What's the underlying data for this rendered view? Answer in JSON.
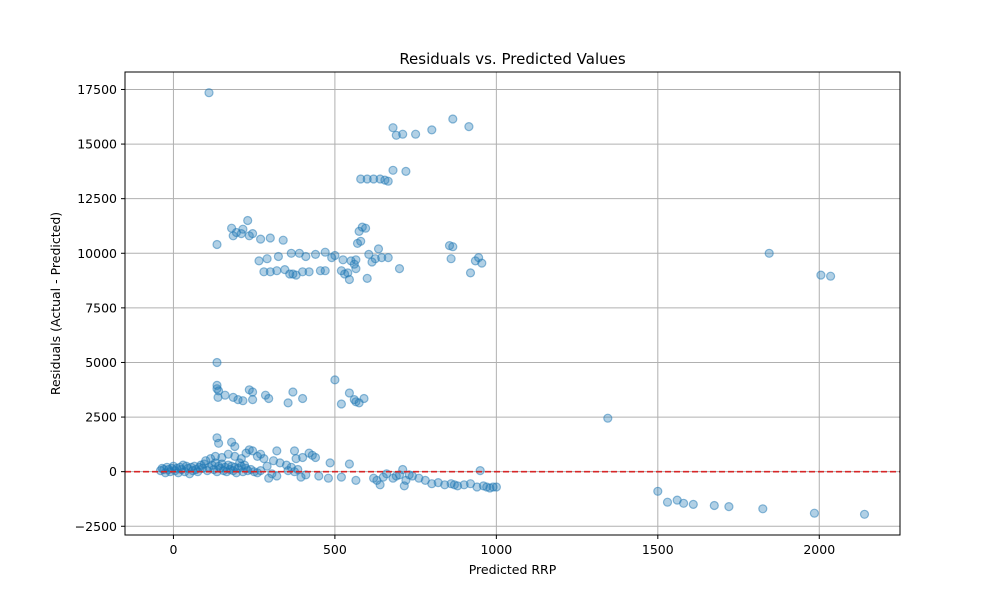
{
  "chart_data": {
    "type": "scatter",
    "title": "Residuals vs. Predicted Values",
    "xlabel": "Predicted RRP",
    "ylabel": "Residuals (Actual - Predicted)",
    "xlim": [
      -150,
      2250
    ],
    "ylim": [
      -2900,
      18300
    ],
    "xticks": [
      0,
      500,
      1000,
      1500,
      2000
    ],
    "yticks": [
      -2500,
      0,
      2500,
      5000,
      7500,
      10000,
      12500,
      15000,
      17500
    ],
    "grid": true,
    "point_color": "#1f77b4",
    "point_alpha": 0.35,
    "reference_line": {
      "y": 0,
      "color": "#d62728",
      "style": "dashed"
    },
    "series": [
      {
        "points": [
          [
            110,
            17350
          ],
          [
            680,
            15750
          ],
          [
            690,
            15400
          ],
          [
            710,
            15450
          ],
          [
            750,
            15450
          ],
          [
            800,
            15650
          ],
          [
            865,
            16150
          ],
          [
            915,
            15800
          ],
          [
            580,
            13400
          ],
          [
            600,
            13400
          ],
          [
            620,
            13400
          ],
          [
            640,
            13400
          ],
          [
            655,
            13350
          ],
          [
            665,
            13300
          ],
          [
            680,
            13800
          ],
          [
            720,
            13750
          ],
          [
            135,
            10400
          ],
          [
            180,
            11150
          ],
          [
            185,
            10800
          ],
          [
            195,
            10950
          ],
          [
            210,
            10900
          ],
          [
            215,
            11100
          ],
          [
            230,
            11500
          ],
          [
            235,
            10800
          ],
          [
            245,
            10900
          ],
          [
            270,
            10650
          ],
          [
            300,
            10700
          ],
          [
            340,
            10600
          ],
          [
            265,
            9650
          ],
          [
            280,
            9150
          ],
          [
            300,
            9150
          ],
          [
            320,
            9200
          ],
          [
            345,
            9250
          ],
          [
            360,
            9050
          ],
          [
            370,
            9050
          ],
          [
            380,
            9000
          ],
          [
            400,
            9150
          ],
          [
            420,
            9150
          ],
          [
            455,
            9200
          ],
          [
            470,
            9200
          ],
          [
            290,
            9750
          ],
          [
            325,
            9850
          ],
          [
            365,
            10000
          ],
          [
            390,
            10000
          ],
          [
            410,
            9850
          ],
          [
            440,
            9950
          ],
          [
            470,
            10050
          ],
          [
            490,
            9800
          ],
          [
            500,
            9900
          ],
          [
            520,
            9200
          ],
          [
            525,
            9700
          ],
          [
            530,
            9050
          ],
          [
            540,
            9100
          ],
          [
            545,
            8800
          ],
          [
            550,
            9650
          ],
          [
            560,
            9500
          ],
          [
            565,
            9300
          ],
          [
            565,
            9700
          ],
          [
            570,
            10450
          ],
          [
            575,
            11000
          ],
          [
            580,
            10550
          ],
          [
            585,
            11200
          ],
          [
            595,
            11150
          ],
          [
            600,
            8850
          ],
          [
            605,
            9950
          ],
          [
            615,
            9600
          ],
          [
            625,
            9750
          ],
          [
            635,
            10200
          ],
          [
            645,
            9800
          ],
          [
            665,
            9800
          ],
          [
            700,
            9300
          ],
          [
            855,
            10350
          ],
          [
            860,
            9750
          ],
          [
            865,
            10300
          ],
          [
            920,
            9100
          ],
          [
            935,
            9650
          ],
          [
            945,
            9800
          ],
          [
            955,
            9550
          ],
          [
            1845,
            10000
          ],
          [
            2005,
            9000
          ],
          [
            2035,
            8950
          ],
          [
            135,
            5000
          ],
          [
            135,
            3800
          ],
          [
            135,
            3950
          ],
          [
            138,
            3400
          ],
          [
            140,
            3700
          ],
          [
            160,
            3500
          ],
          [
            185,
            3400
          ],
          [
            200,
            3300
          ],
          [
            215,
            3250
          ],
          [
            235,
            3750
          ],
          [
            245,
            3300
          ],
          [
            245,
            3650
          ],
          [
            285,
            3500
          ],
          [
            295,
            3350
          ],
          [
            355,
            3150
          ],
          [
            370,
            3650
          ],
          [
            400,
            3350
          ],
          [
            500,
            4200
          ],
          [
            520,
            3100
          ],
          [
            545,
            3600
          ],
          [
            560,
            3300
          ],
          [
            565,
            3200
          ],
          [
            575,
            3150
          ],
          [
            590,
            3350
          ],
          [
            1345,
            2450
          ],
          [
            135,
            1550
          ],
          [
            140,
            1300
          ],
          [
            180,
            1350
          ],
          [
            190,
            1150
          ],
          [
            235,
            1000
          ],
          [
            245,
            950
          ],
          [
            270,
            800
          ],
          [
            320,
            950
          ],
          [
            375,
            950
          ],
          [
            420,
            850
          ],
          [
            430,
            750
          ],
          [
            130,
            700
          ],
          [
            150,
            650
          ],
          [
            170,
            800
          ],
          [
            190,
            700
          ],
          [
            210,
            600
          ],
          [
            225,
            850
          ],
          [
            260,
            700
          ],
          [
            280,
            600
          ],
          [
            310,
            500
          ],
          [
            330,
            400
          ],
          [
            350,
            300
          ],
          [
            380,
            600
          ],
          [
            400,
            650
          ],
          [
            440,
            650
          ],
          [
            -40,
            50
          ],
          [
            -35,
            150
          ],
          [
            -30,
            100
          ],
          [
            -25,
            -50
          ],
          [
            -20,
            200
          ],
          [
            -15,
            100
          ],
          [
            -10,
            0
          ],
          [
            -5,
            150
          ],
          [
            0,
            250
          ],
          [
            5,
            50
          ],
          [
            10,
            150
          ],
          [
            15,
            -50
          ],
          [
            20,
            200
          ],
          [
            25,
            100
          ],
          [
            30,
            300
          ],
          [
            35,
            0
          ],
          [
            40,
            250
          ],
          [
            45,
            150
          ],
          [
            50,
            -100
          ],
          [
            55,
            200
          ],
          [
            60,
            50
          ],
          [
            65,
            250
          ],
          [
            70,
            100
          ],
          [
            75,
            0
          ],
          [
            80,
            200
          ],
          [
            85,
            300
          ],
          [
            90,
            150
          ],
          [
            95,
            350
          ],
          [
            100,
            500
          ],
          [
            105,
            50
          ],
          [
            110,
            200
          ],
          [
            115,
            600
          ],
          [
            120,
            300
          ],
          [
            125,
            100
          ],
          [
            130,
            400
          ],
          [
            135,
            0
          ],
          [
            140,
            250
          ],
          [
            145,
            150
          ],
          [
            150,
            350
          ],
          [
            155,
            50
          ],
          [
            160,
            200
          ],
          [
            165,
            0
          ],
          [
            170,
            300
          ],
          [
            175,
            100
          ],
          [
            180,
            250
          ],
          [
            185,
            50
          ],
          [
            190,
            200
          ],
          [
            195,
            -50
          ],
          [
            200,
            150
          ],
          [
            205,
            400
          ],
          [
            210,
            250
          ],
          [
            215,
            0
          ],
          [
            220,
            300
          ],
          [
            225,
            150
          ],
          [
            230,
            50
          ],
          [
            240,
            100
          ],
          [
            250,
            0
          ],
          [
            260,
            -50
          ],
          [
            270,
            50
          ],
          [
            290,
            250
          ],
          [
            295,
            -300
          ],
          [
            305,
            -100
          ],
          [
            320,
            -200
          ],
          [
            355,
            50
          ],
          [
            365,
            200
          ],
          [
            375,
            0
          ],
          [
            385,
            100
          ],
          [
            395,
            -250
          ],
          [
            410,
            -150
          ],
          [
            450,
            -200
          ],
          [
            480,
            -300
          ],
          [
            485,
            400
          ],
          [
            520,
            -250
          ],
          [
            545,
            350
          ],
          [
            565,
            -400
          ],
          [
            620,
            -300
          ],
          [
            630,
            -400
          ],
          [
            640,
            -600
          ],
          [
            650,
            -250
          ],
          [
            660,
            -100
          ],
          [
            680,
            -300
          ],
          [
            690,
            -200
          ],
          [
            700,
            -150
          ],
          [
            710,
            100
          ],
          [
            715,
            -650
          ],
          [
            720,
            -400
          ],
          [
            730,
            -150
          ],
          [
            740,
            -200
          ],
          [
            760,
            -300
          ],
          [
            780,
            -400
          ],
          [
            800,
            -550
          ],
          [
            820,
            -500
          ],
          [
            840,
            -600
          ],
          [
            860,
            -550
          ],
          [
            870,
            -600
          ],
          [
            880,
            -650
          ],
          [
            900,
            -600
          ],
          [
            920,
            -550
          ],
          [
            940,
            -700
          ],
          [
            950,
            50
          ],
          [
            960,
            -650
          ],
          [
            970,
            -700
          ],
          [
            980,
            -750
          ],
          [
            990,
            -700
          ],
          [
            1000,
            -700
          ],
          [
            1500,
            -900
          ],
          [
            1530,
            -1400
          ],
          [
            1560,
            -1300
          ],
          [
            1580,
            -1450
          ],
          [
            1610,
            -1500
          ],
          [
            1675,
            -1550
          ],
          [
            1720,
            -1600
          ],
          [
            1825,
            -1700
          ],
          [
            1985,
            -1900
          ],
          [
            2140,
            -1950
          ]
        ]
      }
    ]
  }
}
